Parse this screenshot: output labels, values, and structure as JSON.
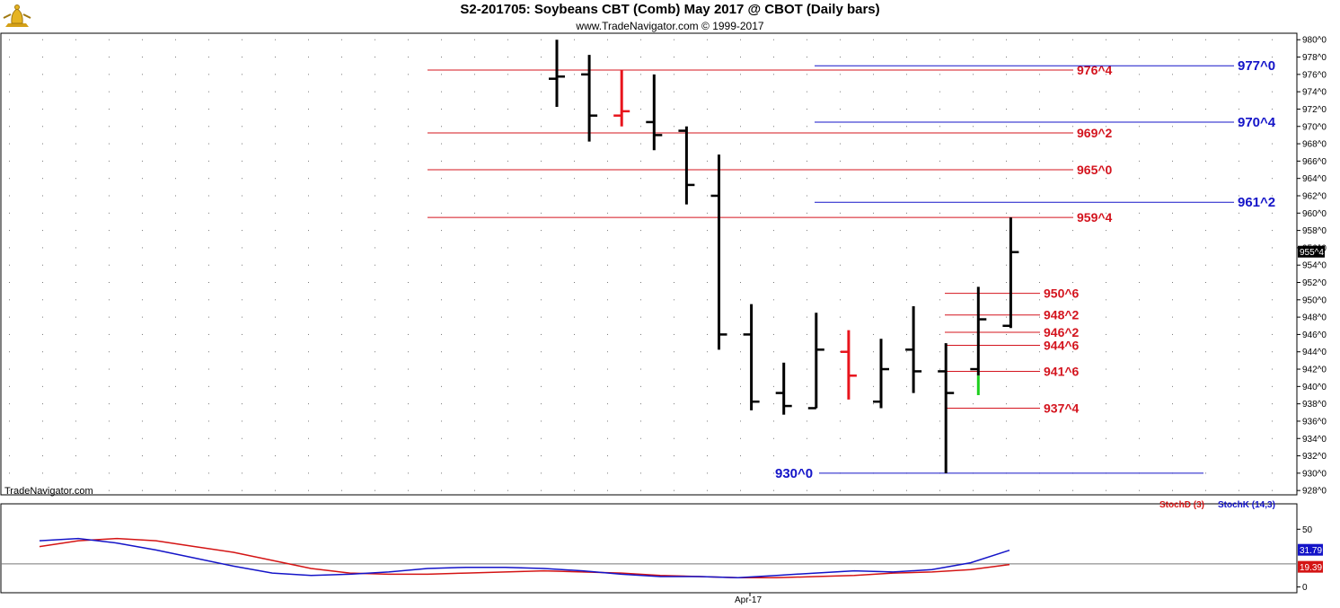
{
  "header": {
    "title": "S2-201705:  Soybeans CBT (Comb) May 2017 @ CBOT  (Daily bars)",
    "subtitle": "www.TradeNavigator.com © 1999-2017",
    "watermark": "TradeNavigator.com",
    "logo_icon": "gold-bell-logo"
  },
  "colors": {
    "bar": "#000000",
    "down_highlight": "#e8141c",
    "up_highlight": "#1ecf1e",
    "support_resistance_red": "#d4141e",
    "projection_blue": "#1414c8",
    "stochD": "#d41414",
    "stochK": "#1414c8"
  },
  "chart_data": [
    {
      "type": "ohlc",
      "y_unit": "cents (price^eighths)",
      "ylim": [
        927.5,
        980.75
      ],
      "y_ticks": [
        "928^0",
        "930^0",
        "932^0",
        "934^0",
        "936^0",
        "938^0",
        "940^0",
        "942^0",
        "944^0",
        "946^0",
        "948^0",
        "950^0",
        "952^0",
        "954^0",
        "956^0",
        "958^0",
        "960^0",
        "962^0",
        "964^0",
        "966^0",
        "968^0",
        "970^0",
        "972^0",
        "974^0",
        "976^0",
        "978^0",
        "980^0"
      ],
      "last_price_label": "955^4",
      "bars": [
        {
          "open": 975.5,
          "high": 980.0,
          "low": 972.25,
          "close": 975.75
        },
        {
          "open": 976.0,
          "high": 978.25,
          "low": 968.25,
          "close": 971.25
        },
        {
          "open": 971.25,
          "high": 976.5,
          "low": 970.0,
          "close": 971.75,
          "color": "down_highlight"
        },
        {
          "open": 970.5,
          "high": 976.0,
          "low": 967.25,
          "close": 969.0
        },
        {
          "open": 969.5,
          "high": 970.0,
          "low": 961.0,
          "close": 963.25
        },
        {
          "open": 962.0,
          "high": 966.75,
          "low": 944.25,
          "close": 946.0
        },
        {
          "open": 946.0,
          "high": 949.5,
          "low": 937.25,
          "close": 938.25
        },
        {
          "open": 939.25,
          "high": 942.75,
          "low": 936.75,
          "close": 937.75
        },
        {
          "open": 937.5,
          "high": 948.5,
          "low": 937.5,
          "close": 944.25
        },
        {
          "open": 944.0,
          "high": 946.5,
          "low": 938.5,
          "close": 941.25,
          "color": "down_highlight"
        },
        {
          "open": 938.25,
          "high": 945.5,
          "low": 937.5,
          "close": 942.0
        },
        {
          "open": 944.25,
          "high": 949.25,
          "low": 939.25,
          "close": 941.75
        },
        {
          "open": 941.75,
          "high": 945.0,
          "low": 930.0,
          "close": 939.25
        },
        {
          "open": 942.0,
          "high": 951.5,
          "low": 941.25,
          "close": 947.75
        },
        {
          "open": 947.0,
          "high": 959.5,
          "low": 946.75,
          "close": 955.5
        }
      ],
      "up_highlight_extension": {
        "from": 941.25,
        "to": 939.0
      },
      "levels_red": [
        {
          "label": "976^4",
          "value": 976.5
        },
        {
          "label": "969^2",
          "value": 969.25
        },
        {
          "label": "965^0",
          "value": 965.0
        },
        {
          "label": "959^4",
          "value": 959.5
        },
        {
          "label": "950^6",
          "value": 950.75
        },
        {
          "label": "948^2",
          "value": 948.25
        },
        {
          "label": "946^2",
          "value": 946.25
        },
        {
          "label": "944^6",
          "value": 944.75
        },
        {
          "label": "941^6",
          "value": 941.75
        },
        {
          "label": "937^4",
          "value": 937.5
        }
      ],
      "levels_blue": [
        {
          "label": "977^0",
          "value": 977.0
        },
        {
          "label": "970^4",
          "value": 970.5
        },
        {
          "label": "961^2",
          "value": 961.25
        },
        {
          "label": "930^0",
          "value": 930.0
        }
      ]
    },
    {
      "type": "line",
      "x_tick_label": "Apr-17",
      "ylim": [
        -5,
        72
      ],
      "y_ticks": [
        "0",
        "50"
      ],
      "reference_line": 20,
      "series": [
        {
          "name": "StochD (3)",
          "color": "#d41414",
          "last_label": "19.39",
          "values": [
            35,
            40,
            42,
            40,
            35,
            30,
            23,
            16,
            12,
            11,
            11,
            12,
            13,
            14,
            13,
            12,
            10,
            9,
            8,
            8,
            9,
            10,
            12,
            13,
            15,
            19.39
          ]
        },
        {
          "name": "StochK (14,3)",
          "color": "#1414c8",
          "last_label": "31.79",
          "values": [
            40,
            42,
            38,
            32,
            25,
            18,
            12,
            10,
            11,
            13,
            16,
            17,
            17,
            16,
            14,
            11,
            9,
            9,
            8,
            10,
            12,
            14,
            13,
            15,
            21,
            31.79
          ]
        }
      ]
    }
  ]
}
